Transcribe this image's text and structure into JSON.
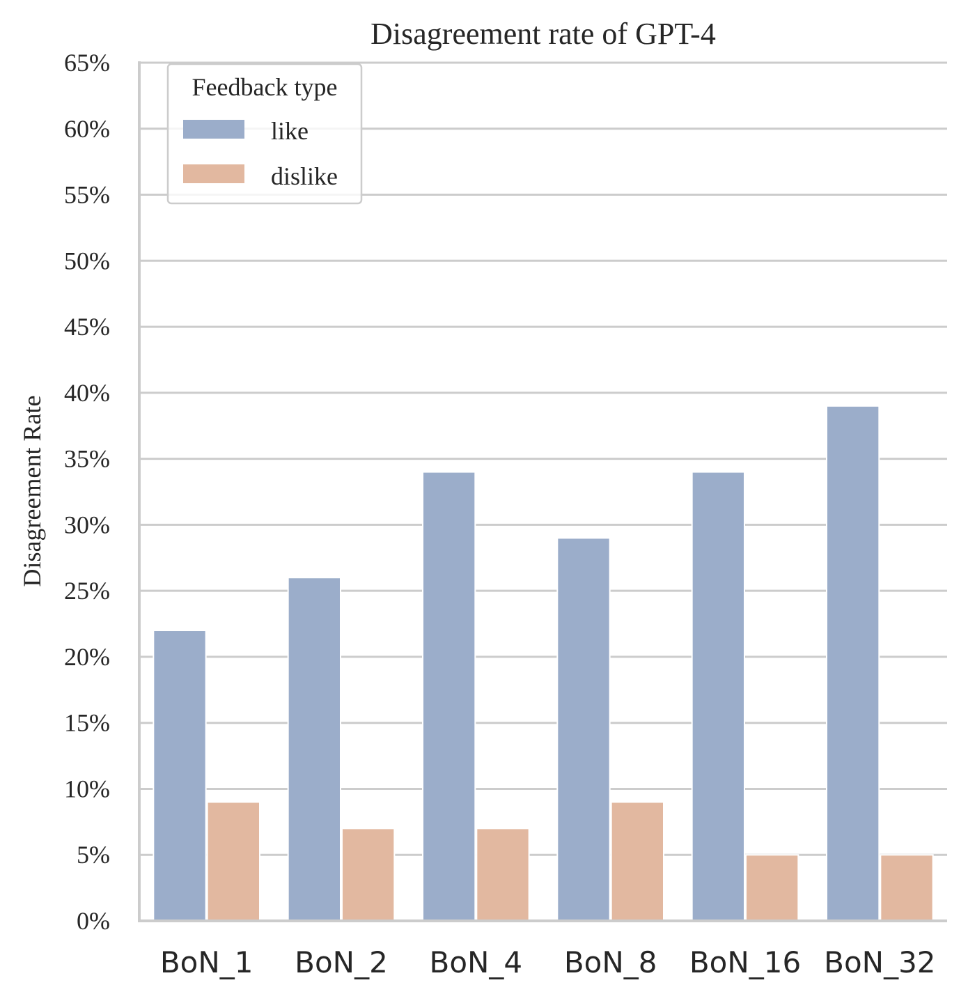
{
  "chart_data": {
    "type": "bar",
    "title": "Disagreement rate of GPT-4",
    "xlabel": "",
    "ylabel": "Disagreement Rate",
    "ylim": [
      0,
      65
    ],
    "yticks": [
      0,
      5,
      10,
      15,
      20,
      25,
      30,
      35,
      40,
      45,
      50,
      55,
      60,
      65
    ],
    "ytick_suffix": "%",
    "grid": "horizontal",
    "categories": [
      "BoN_1",
      "BoN_2",
      "BoN_4",
      "BoN_8",
      "BoN_16",
      "BoN_32"
    ],
    "series": [
      {
        "name": "like",
        "color": "#9badca",
        "values": [
          22,
          26,
          34,
          29,
          34,
          39
        ]
      },
      {
        "name": "dislike",
        "color": "#e2b8a0",
        "values": [
          9,
          7,
          7,
          9,
          5,
          5
        ]
      }
    ],
    "legend": {
      "title": "Feedback type",
      "position": "top-left"
    }
  }
}
